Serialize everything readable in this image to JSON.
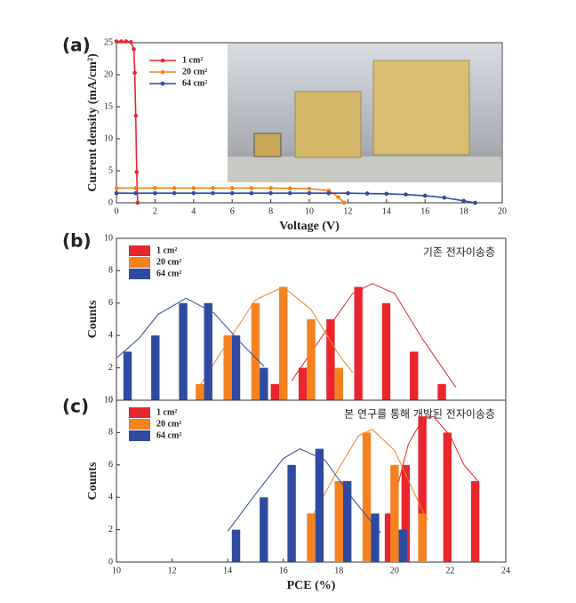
{
  "chart_data": [
    {
      "type": "line",
      "panel": "(a)",
      "xlabel": "Voltage (V)",
      "ylabel": "Current density (mA/cm²)",
      "xlim": [
        0,
        20
      ],
      "xticks": [
        0,
        2,
        4,
        6,
        8,
        10,
        12,
        14,
        16,
        18,
        20
      ],
      "ylim": [
        0,
        25
      ],
      "yticks": [
        0,
        5,
        10,
        15,
        20,
        25
      ],
      "series": [
        {
          "name": "1 cm²",
          "color": "#e8262b",
          "x": [
            0,
            0.25,
            0.5,
            0.75,
            0.9,
            0.95,
            1.0,
            1.05,
            1.1
          ],
          "values": [
            25.2,
            25.2,
            25.2,
            25.1,
            24,
            20.3,
            13.6,
            4.8,
            0
          ]
        },
        {
          "name": "20 cm²",
          "color": "#f5821f",
          "x": [
            0,
            1,
            2,
            3,
            4,
            5,
            6,
            7,
            8,
            9,
            10,
            11,
            11.5,
            11.8
          ],
          "values": [
            2.3,
            2.3,
            2.3,
            2.3,
            2.3,
            2.3,
            2.3,
            2.3,
            2.3,
            2.25,
            2.2,
            1.9,
            0.9,
            0
          ]
        },
        {
          "name": "64 cm²",
          "color": "#2e4ba0",
          "x": [
            0,
            1,
            2,
            3,
            4,
            5,
            6,
            7,
            8,
            9,
            10,
            11,
            12,
            13,
            14,
            15,
            16,
            17,
            18,
            18.6
          ],
          "values": [
            1.5,
            1.5,
            1.5,
            1.5,
            1.5,
            1.5,
            1.5,
            1.5,
            1.5,
            1.5,
            1.5,
            1.5,
            1.5,
            1.45,
            1.4,
            1.3,
            1.1,
            0.8,
            0.3,
            0
          ]
        }
      ]
    },
    {
      "type": "bar",
      "panel": "(b)",
      "annotation": "기존  전자이송층",
      "ylabel": "Counts",
      "xlim": [
        10,
        24
      ],
      "ylim": [
        0,
        10
      ],
      "yticks": [
        0,
        2,
        4,
        6,
        8,
        10
      ],
      "series": [
        {
          "name": "1 cm²",
          "color": "#e8262b",
          "x": [
            15.7,
            16.7,
            17.7,
            18.7,
            19.7,
            20.7,
            21.7
          ],
          "values": [
            1,
            2,
            5,
            7,
            6,
            3,
            1
          ],
          "fit": {
            "x": [
              16.3,
              17.5,
              18.5,
              19.2,
              20,
              21,
              22.2
            ],
            "values": [
              1.2,
              4.2,
              6.6,
              7.2,
              6.6,
              3.8,
              0.8
            ]
          }
        },
        {
          "name": "20 cm²",
          "color": "#f5821f",
          "x": [
            13.0,
            14.0,
            15.0,
            16.0,
            17.0,
            18.0
          ],
          "values": [
            1,
            4,
            6,
            7,
            5,
            2
          ],
          "fit": {
            "x": [
              13,
              14,
              15,
              16,
              17,
              18,
              18.5
            ],
            "values": [
              0.9,
              3.6,
              6.2,
              7,
              5.6,
              2.8,
              1.7
            ]
          }
        },
        {
          "name": "64 cm²",
          "color": "#2e4ba0",
          "x": [
            10.4,
            11.4,
            12.4,
            13.3,
            14.3,
            15.3
          ],
          "values": [
            3,
            4,
            6,
            6,
            4,
            2
          ],
          "fit": {
            "x": [
              10,
              10.8,
              11.5,
              12.5,
              13.5,
              14.5,
              15.3
            ],
            "values": [
              2.6,
              3.8,
              5.3,
              6.3,
              5.4,
              3.5,
              2.1
            ]
          }
        }
      ]
    },
    {
      "type": "bar",
      "panel": "(c)",
      "annotation": "본 연구를 통해 개발된 전자이송층",
      "xlabel": "PCE (%)",
      "ylabel": "Counts",
      "xlim": [
        10,
        24
      ],
      "xticks": [
        10,
        12,
        14,
        16,
        18,
        20,
        22,
        24
      ],
      "ylim": [
        0,
        10
      ],
      "yticks": [
        0,
        2,
        4,
        6,
        8,
        10
      ],
      "series": [
        {
          "name": "1 cm²",
          "color": "#e8262b",
          "x": [
            19.8,
            20.4,
            21.0,
            21.9,
            22.9
          ],
          "values": [
            3,
            6,
            9,
            8,
            5
          ],
          "fit": {
            "x": [
              20,
              20.5,
              21,
              21.4,
              22,
              22.5,
              23
            ],
            "values": [
              4,
              7.3,
              8.8,
              9,
              7.8,
              6,
              5
            ]
          }
        },
        {
          "name": "20 cm²",
          "color": "#f5821f",
          "x": [
            17.0,
            18.0,
            19.0,
            20.0,
            21.0
          ],
          "values": [
            3,
            5,
            8,
            6,
            3
          ],
          "fit": {
            "x": [
              17,
              18,
              18.7,
              19.2,
              20,
              21,
              21.2
            ],
            "values": [
              2.7,
              5.8,
              7.8,
              8.2,
              6.9,
              3.2,
              2.6
            ]
          }
        },
        {
          "name": "64 cm²",
          "color": "#2e4ba0",
          "x": [
            14.3,
            15.3,
            16.3,
            17.3,
            18.3,
            19.3,
            20.3
          ],
          "values": [
            2,
            4,
            6,
            7,
            5,
            3,
            2
          ],
          "fit": {
            "x": [
              14,
              15,
              16,
              16.6,
              17.5,
              18.5,
              19.5
            ],
            "values": [
              1.9,
              4.2,
              6.4,
              7,
              6.3,
              3.9,
              1.8
            ]
          }
        }
      ]
    }
  ]
}
